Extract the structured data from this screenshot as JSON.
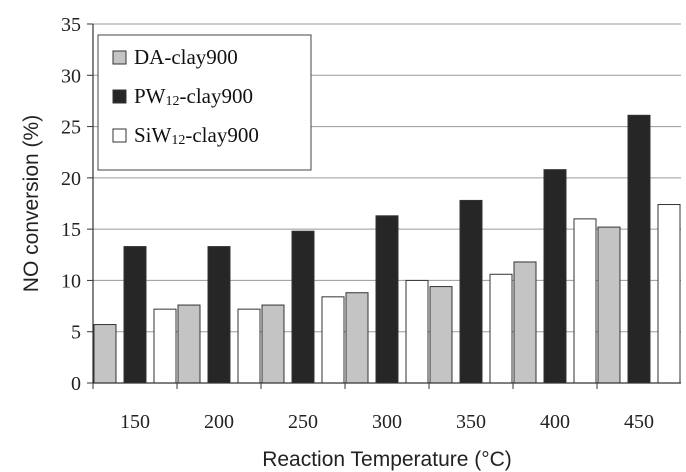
{
  "chart_data": {
    "type": "bar",
    "title": "",
    "xlabel": "Reaction Temperature (°C)",
    "ylabel": "NO conversion (%)",
    "categories": [
      "150",
      "200",
      "250",
      "300",
      "350",
      "400",
      "450"
    ],
    "ylim": [
      0,
      35
    ],
    "yticks": [
      0,
      5,
      10,
      15,
      20,
      25,
      30,
      35
    ],
    "grid": "horizontal",
    "legend_position": "top-left",
    "series": [
      {
        "name": "DA-clay900",
        "name_main": "DA-clay900",
        "name_sub": "",
        "name_tail": "",
        "color": "#c4c4c4",
        "values": [
          5.7,
          7.6,
          7.6,
          8.8,
          9.4,
          11.8,
          15.2
        ]
      },
      {
        "name": "PW12-clay900",
        "name_main": "PW",
        "name_sub": "12",
        "name_tail": "-clay900",
        "color": "#262626",
        "values": [
          13.3,
          13.3,
          14.8,
          16.3,
          17.8,
          20.8,
          26.1
        ]
      },
      {
        "name": "SiW12-clay900",
        "name_main": "SiW",
        "name_sub": "12",
        "name_tail": "-clay900",
        "color": "#ffffff",
        "values": [
          7.2,
          7.2,
          8.4,
          10.0,
          10.6,
          16.0,
          17.4
        ]
      }
    ]
  }
}
